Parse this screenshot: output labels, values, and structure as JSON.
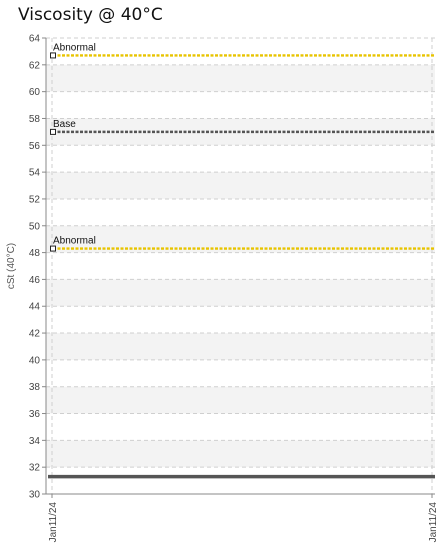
{
  "chart_data": {
    "type": "line",
    "title": "Viscosity @ 40°C",
    "ylabel": "cSt (40°C)",
    "xlabel": "",
    "ylim": [
      30,
      64
    ],
    "y_ticks": [
      "30",
      "32",
      "34",
      "36",
      "38",
      "40",
      "42",
      "44",
      "46",
      "48",
      "50",
      "52",
      "54",
      "56",
      "58",
      "60",
      "62",
      "64"
    ],
    "x_ticks": [
      "Jan11/24",
      "Jan11/24"
    ],
    "grid": true,
    "reference_lines": [
      {
        "label": "Abnormal",
        "value": 62.7,
        "color": "#e8c400"
      },
      {
        "label": "Base",
        "value": 57.0,
        "color": "#555555"
      },
      {
        "label": "Abnormal",
        "value": 48.3,
        "color": "#e8c400"
      }
    ],
    "series": [
      {
        "values": [
          31.3,
          31.3
        ],
        "color": "#555555"
      }
    ]
  }
}
